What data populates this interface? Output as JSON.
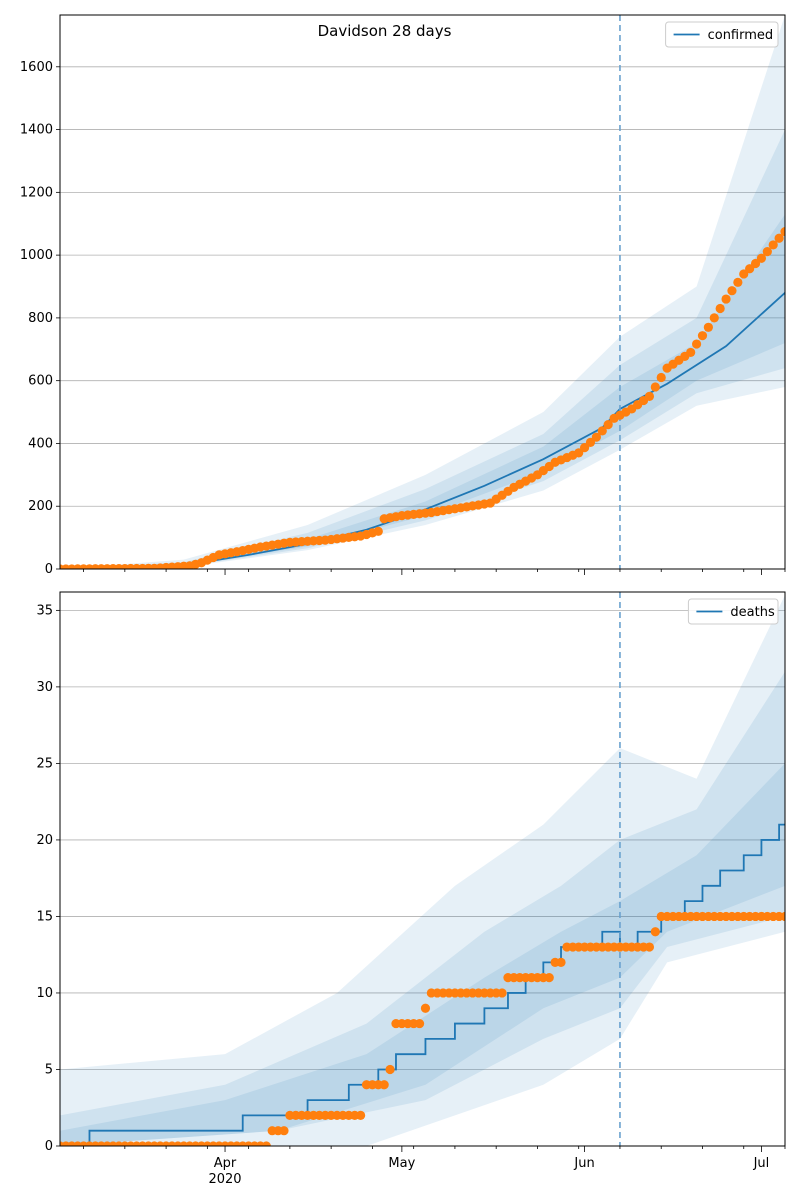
{
  "chart_data": [
    {
      "type": "line",
      "title": "Davidson 28 days",
      "legend": {
        "label": "confirmed",
        "position": "top-right"
      },
      "x_ticks": [
        {
          "date": "2020-04-01",
          "label": "Apr",
          "sublabel": "2020"
        },
        {
          "date": "2020-05-01",
          "label": "May",
          "sublabel": ""
        },
        {
          "date": "2020-06-01",
          "label": "Jun",
          "sublabel": ""
        },
        {
          "date": "2020-07-01",
          "label": "Jul",
          "sublabel": ""
        }
      ],
      "xlim": [
        "2020-03-04",
        "2020-07-05"
      ],
      "ylim": [
        0,
        1765
      ],
      "y_ticks": [
        0,
        200,
        400,
        600,
        800,
        1000,
        1200,
        1400,
        1600
      ],
      "grid": "horizontal",
      "forecast_start": "2020-06-07",
      "colors": {
        "model": "#1f77b4",
        "observed": "#ff7f0e"
      },
      "model_points": [
        [
          "2020-03-04",
          0
        ],
        [
          "2020-03-15",
          2
        ],
        [
          "2020-03-25",
          12
        ],
        [
          "2020-04-05",
          45
        ],
        [
          "2020-04-15",
          80
        ],
        [
          "2020-04-25",
          125
        ],
        [
          "2020-05-05",
          190
        ],
        [
          "2020-05-15",
          265
        ],
        [
          "2020-05-25",
          350
        ],
        [
          "2020-06-04",
          450
        ],
        [
          "2020-06-07",
          510
        ],
        [
          "2020-06-15",
          590
        ],
        [
          "2020-06-25",
          710
        ],
        [
          "2020-07-05",
          880
        ]
      ],
      "bands": [
        {
          "lower": [
            [
              "2020-03-04",
              0
            ],
            [
              "2020-03-25",
              6
            ],
            [
              "2020-04-15",
              60
            ],
            [
              "2020-05-05",
              140
            ],
            [
              "2020-05-25",
              250
            ],
            [
              "2020-06-07",
              380
            ],
            [
              "2020-06-20",
              520
            ],
            [
              "2020-07-05",
              580
            ]
          ],
          "upper": [
            [
              "2020-03-04",
              0
            ],
            [
              "2020-03-25",
              30
            ],
            [
              "2020-04-15",
              140
            ],
            [
              "2020-05-05",
              300
            ],
            [
              "2020-05-25",
              500
            ],
            [
              "2020-06-07",
              740
            ],
            [
              "2020-06-20",
              900
            ],
            [
              "2020-07-05",
              1765
            ]
          ]
        },
        {
          "lower": [
            [
              "2020-03-04",
              0
            ],
            [
              "2020-03-25",
              8
            ],
            [
              "2020-04-15",
              66
            ],
            [
              "2020-05-05",
              155
            ],
            [
              "2020-05-25",
              280
            ],
            [
              "2020-06-07",
              410
            ],
            [
              "2020-06-20",
              560
            ],
            [
              "2020-07-05",
              640
            ]
          ],
          "upper": [
            [
              "2020-03-04",
              0
            ],
            [
              "2020-03-25",
              22
            ],
            [
              "2020-04-15",
              115
            ],
            [
              "2020-05-05",
              255
            ],
            [
              "2020-05-25",
              430
            ],
            [
              "2020-06-07",
              650
            ],
            [
              "2020-06-20",
              800
            ],
            [
              "2020-07-05",
              1400
            ]
          ]
        },
        {
          "lower": [
            [
              "2020-03-04",
              0
            ],
            [
              "2020-03-25",
              10
            ],
            [
              "2020-04-15",
              72
            ],
            [
              "2020-05-05",
              170
            ],
            [
              "2020-05-25",
              310
            ],
            [
              "2020-06-07",
              440
            ],
            [
              "2020-06-20",
              600
            ],
            [
              "2020-07-05",
              720
            ]
          ],
          "upper": [
            [
              "2020-03-04",
              0
            ],
            [
              "2020-03-25",
              16
            ],
            [
              "2020-04-15",
              95
            ],
            [
              "2020-05-05",
              215
            ],
            [
              "2020-05-25",
              390
            ],
            [
              "2020-06-07",
              580
            ],
            [
              "2020-06-20",
              720
            ],
            [
              "2020-07-05",
              1130
            ]
          ]
        }
      ],
      "observed": [
        [
          "2020-03-04",
          0
        ],
        [
          "2020-03-20",
          2
        ],
        [
          "2020-03-26",
          10
        ],
        [
          "2020-03-28",
          20
        ],
        [
          "2020-03-31",
          45
        ],
        [
          "2020-04-03",
          55
        ],
        [
          "2020-04-07",
          70
        ],
        [
          "2020-04-12",
          85
        ],
        [
          "2020-04-18",
          92
        ],
        [
          "2020-04-24",
          105
        ],
        [
          "2020-04-27",
          120
        ],
        [
          "2020-04-28",
          160
        ],
        [
          "2020-05-01",
          170
        ],
        [
          "2020-05-06",
          180
        ],
        [
          "2020-05-11",
          195
        ],
        [
          "2020-05-16",
          210
        ],
        [
          "2020-05-20",
          260
        ],
        [
          "2020-05-24",
          300
        ],
        [
          "2020-05-27",
          340
        ],
        [
          "2020-05-31",
          370
        ],
        [
          "2020-06-03",
          420
        ],
        [
          "2020-06-06",
          480
        ],
        [
          "2020-06-09",
          510
        ],
        [
          "2020-06-12",
          550
        ],
        [
          "2020-06-15",
          640
        ],
        [
          "2020-06-19",
          690
        ],
        [
          "2020-06-22",
          770
        ],
        [
          "2020-06-25",
          860
        ],
        [
          "2020-06-28",
          940
        ],
        [
          "2020-07-01",
          990
        ],
        [
          "2020-07-05",
          1075
        ]
      ]
    },
    {
      "type": "step",
      "legend": {
        "label": "deaths",
        "position": "top-right"
      },
      "x_ticks": [
        {
          "date": "2020-04-01",
          "label": "Apr",
          "sublabel": "2020"
        },
        {
          "date": "2020-05-01",
          "label": "May",
          "sublabel": ""
        },
        {
          "date": "2020-06-01",
          "label": "Jun",
          "sublabel": ""
        },
        {
          "date": "2020-07-01",
          "label": "Jul",
          "sublabel": ""
        }
      ],
      "xlim": [
        "2020-03-04",
        "2020-07-05"
      ],
      "ylim": [
        0,
        36.2
      ],
      "y_ticks": [
        0,
        5,
        10,
        15,
        20,
        25,
        30,
        35
      ],
      "grid": "horizontal",
      "forecast_start": "2020-06-07",
      "model_steps": [
        [
          "2020-03-04",
          0
        ],
        [
          "2020-03-09",
          1
        ],
        [
          "2020-04-04",
          2
        ],
        [
          "2020-04-15",
          3
        ],
        [
          "2020-04-22",
          4
        ],
        [
          "2020-04-27",
          5
        ],
        [
          "2020-04-30",
          6
        ],
        [
          "2020-05-05",
          7
        ],
        [
          "2020-05-10",
          8
        ],
        [
          "2020-05-15",
          9
        ],
        [
          "2020-05-19",
          10
        ],
        [
          "2020-05-22",
          11
        ],
        [
          "2020-05-25",
          12
        ],
        [
          "2020-05-28",
          13
        ],
        [
          "2020-06-04",
          14
        ],
        [
          "2020-06-07",
          13
        ],
        [
          "2020-06-10",
          14
        ],
        [
          "2020-06-14",
          15
        ],
        [
          "2020-06-18",
          16
        ],
        [
          "2020-06-21",
          17
        ],
        [
          "2020-06-24",
          18
        ],
        [
          "2020-06-28",
          19
        ],
        [
          "2020-07-01",
          20
        ],
        [
          "2020-07-04",
          21
        ]
      ],
      "bands": [
        {
          "lower": [
            [
              "2020-03-04",
              0
            ],
            [
              "2020-04-25",
              0
            ],
            [
              "2020-05-10",
              2
            ],
            [
              "2020-05-25",
              4
            ],
            [
              "2020-06-07",
              7
            ],
            [
              "2020-06-15",
              12
            ],
            [
              "2020-07-05",
              14
            ]
          ],
          "upper": [
            [
              "2020-03-04",
              5
            ],
            [
              "2020-04-01",
              6
            ],
            [
              "2020-04-20",
              10
            ],
            [
              "2020-05-10",
              17
            ],
            [
              "2020-05-25",
              21
            ],
            [
              "2020-06-07",
              26
            ],
            [
              "2020-06-20",
              24
            ],
            [
              "2020-07-05",
              36
            ]
          ]
        },
        {
          "lower": [
            [
              "2020-03-04",
              0
            ],
            [
              "2020-04-10",
              1
            ],
            [
              "2020-05-05",
              3
            ],
            [
              "2020-05-25",
              7
            ],
            [
              "2020-06-07",
              9
            ],
            [
              "2020-06-15",
              13
            ],
            [
              "2020-07-05",
              15
            ]
          ],
          "upper": [
            [
              "2020-03-04",
              2
            ],
            [
              "2020-04-01",
              4
            ],
            [
              "2020-04-25",
              8
            ],
            [
              "2020-05-15",
              14
            ],
            [
              "2020-05-28",
              17
            ],
            [
              "2020-06-07",
              20
            ],
            [
              "2020-06-20",
              22
            ],
            [
              "2020-07-05",
              31
            ]
          ]
        },
        {
          "lower": [
            [
              "2020-03-04",
              0
            ],
            [
              "2020-04-10",
              1
            ],
            [
              "2020-05-05",
              4
            ],
            [
              "2020-05-25",
              9
            ],
            [
              "2020-06-07",
              11
            ],
            [
              "2020-06-15",
              14
            ],
            [
              "2020-07-05",
              17
            ]
          ],
          "upper": [
            [
              "2020-03-04",
              1
            ],
            [
              "2020-04-01",
              3
            ],
            [
              "2020-04-25",
              6
            ],
            [
              "2020-05-15",
              11
            ],
            [
              "2020-05-28",
              14
            ],
            [
              "2020-06-07",
              16
            ],
            [
              "2020-06-20",
              19
            ],
            [
              "2020-07-05",
              25
            ]
          ]
        }
      ],
      "observed_steps": [
        [
          "2020-03-04",
          0
        ],
        [
          "2020-04-09",
          1
        ],
        [
          "2020-04-12",
          2
        ],
        [
          "2020-04-25",
          4
        ],
        [
          "2020-04-29",
          5
        ],
        [
          "2020-04-30",
          8
        ],
        [
          "2020-05-05",
          9
        ],
        [
          "2020-05-06",
          10
        ],
        [
          "2020-05-19",
          11
        ],
        [
          "2020-05-27",
          12
        ],
        [
          "2020-05-29",
          13
        ],
        [
          "2020-06-13",
          14
        ],
        [
          "2020-06-14",
          15
        ],
        [
          "2020-07-05",
          15
        ]
      ]
    }
  ]
}
